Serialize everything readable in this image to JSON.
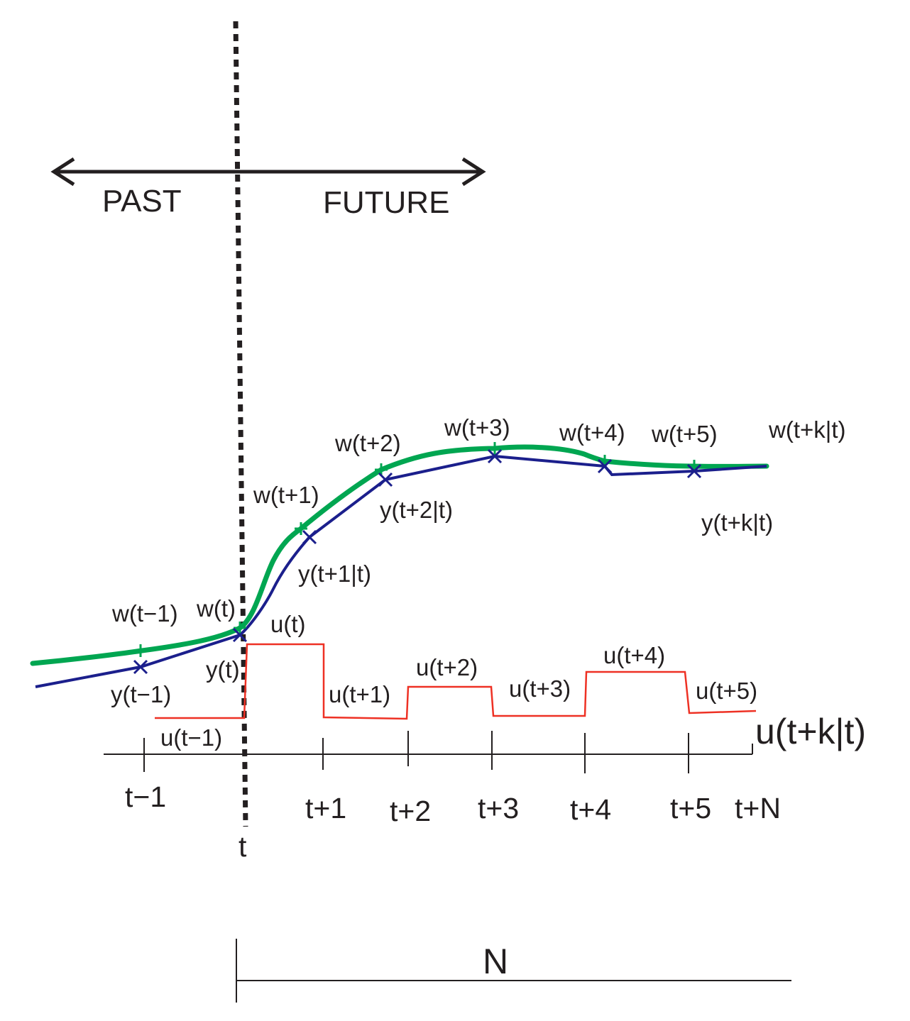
{
  "colors": {
    "setpoint": "#00a651",
    "prediction": "#1b1f8c",
    "control": "#ee3124",
    "ink": "#231f20"
  },
  "direction": {
    "past": "PAST",
    "future": "FUTURE"
  },
  "time_axis": {
    "now": "t",
    "ticks": [
      "t−1",
      "t+1",
      "t+2",
      "t+3",
      "t+4",
      "t+5",
      "t+N"
    ]
  },
  "setpoint_labels": [
    "w(t−1)",
    "w(t)",
    "w(t+1)",
    "w(t+2)",
    "w(t+3)",
    "w(t+4)",
    "w(t+5)",
    "w(t+k|t)"
  ],
  "output_labels": [
    "y(t−1)",
    "y(t)",
    "y(t+1|t)",
    "y(t+2|t)",
    "y(t+k|t)"
  ],
  "control_labels": [
    "u(t−1)",
    "u(t)",
    "u(t+1)",
    "u(t+2)",
    "u(t+3)",
    "u(t+4)",
    "u(t+5)"
  ],
  "control_sequence_label": "u(t+k|t)",
  "horizon_label": "N",
  "icons": {
    "marker_setpoint": "plus-marker-icon",
    "marker_output": "x-marker-icon"
  }
}
